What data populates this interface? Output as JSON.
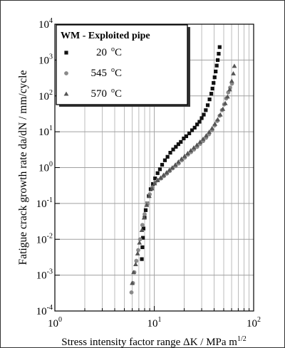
{
  "chart_data": {
    "type": "scatter",
    "xlabel": "Stress intensity factor range ΔK / MPa m",
    "xlabel_sup": "1/2",
    "ylabel": "Fatigue crack growth rate da/dN / mm/cycle",
    "xscale": "log",
    "yscale": "log",
    "xlim": [
      1,
      100
    ],
    "ylim": [
      0.0001,
      10000
    ],
    "x_ticks": [
      {
        "base": "10",
        "exp": "0",
        "value": 1
      },
      {
        "base": "10",
        "exp": "1",
        "value": 10
      },
      {
        "base": "10",
        "exp": "2",
        "value": 100
      }
    ],
    "y_ticks": [
      {
        "base": "10",
        "exp": "-4",
        "value": 0.0001
      },
      {
        "base": "10",
        "exp": "-3",
        "value": 0.001
      },
      {
        "base": "10",
        "exp": "-2",
        "value": 0.01
      },
      {
        "base": "10",
        "exp": "-1",
        "value": 0.1
      },
      {
        "base": "10",
        "exp": "0",
        "value": 1
      },
      {
        "base": "10",
        "exp": "1",
        "value": 10
      },
      {
        "base": "10",
        "exp": "2",
        "value": 100
      },
      {
        "base": "10",
        "exp": "3",
        "value": 1000
      },
      {
        "base": "10",
        "exp": "4",
        "value": 10000
      }
    ],
    "grid": true,
    "legend": {
      "title": "WM - Exploited pipe",
      "position": "top-left"
    },
    "series": [
      {
        "name": "20 °C",
        "label_num": "20",
        "marker": "square",
        "color": "#111111",
        "points": [
          [
            7.5,
            0.0028
          ],
          [
            7.6,
            0.006
          ],
          [
            7.7,
            0.011
          ],
          [
            7.8,
            0.02
          ],
          [
            8.0,
            0.04
          ],
          [
            8.2,
            0.065
          ],
          [
            8.5,
            0.1
          ],
          [
            8.8,
            0.16
          ],
          [
            9.2,
            0.25
          ],
          [
            9.7,
            0.35
          ],
          [
            10.2,
            0.5
          ],
          [
            10.8,
            0.7
          ],
          [
            11.4,
            0.9
          ],
          [
            12.0,
            1.2
          ],
          [
            12.8,
            1.6
          ],
          [
            13.6,
            2.0
          ],
          [
            14.5,
            2.6
          ],
          [
            15.5,
            3.2
          ],
          [
            16.5,
            3.8
          ],
          [
            17.5,
            4.5
          ],
          [
            18.5,
            5.2
          ],
          [
            19.8,
            6.5
          ],
          [
            21.0,
            7.5
          ],
          [
            22.5,
            9
          ],
          [
            24.0,
            11
          ],
          [
            25.5,
            13
          ],
          [
            27.0,
            16
          ],
          [
            28.5,
            19
          ],
          [
            30.0,
            24
          ],
          [
            31.5,
            30
          ],
          [
            33.0,
            40
          ],
          [
            34.5,
            55
          ],
          [
            36.0,
            80
          ],
          [
            37.5,
            115
          ],
          [
            38.5,
            160
          ],
          [
            39.5,
            230
          ],
          [
            40.5,
            330
          ],
          [
            41.5,
            480
          ],
          [
            42.5,
            700
          ],
          [
            43.5,
            1000
          ],
          [
            44.5,
            1500
          ],
          [
            45.5,
            2300
          ]
        ]
      },
      {
        "name": "545 °C",
        "label_num": "545",
        "marker": "circle",
        "color": "#8a8a8a",
        "points": [
          [
            5.9,
            0.00033
          ],
          [
            6.1,
            0.0006
          ],
          [
            6.3,
            0.0012
          ],
          [
            6.6,
            0.0025
          ],
          [
            6.9,
            0.005
          ],
          [
            7.2,
            0.01
          ],
          [
            7.6,
            0.025
          ],
          [
            8.0,
            0.05
          ],
          [
            8.5,
            0.1
          ],
          [
            9.0,
            0.18
          ],
          [
            9.6,
            0.28
          ],
          [
            10.2,
            0.38
          ],
          [
            10.9,
            0.45
          ],
          [
            11.7,
            0.5
          ],
          [
            12.5,
            0.58
          ],
          [
            13.4,
            0.68
          ],
          [
            14.3,
            0.8
          ],
          [
            15.3,
            0.95
          ],
          [
            16.4,
            1.1
          ],
          [
            17.6,
            1.3
          ],
          [
            18.9,
            1.6
          ],
          [
            20.3,
            1.9
          ],
          [
            21.8,
            2.3
          ],
          [
            23.4,
            2.7
          ],
          [
            25.1,
            3.2
          ],
          [
            27.0,
            3.8
          ],
          [
            29.0,
            4.6
          ],
          [
            31.0,
            5.5
          ],
          [
            33.2,
            6.8
          ],
          [
            35.5,
            8.5
          ],
          [
            38.0,
            11
          ],
          [
            40.5,
            15
          ],
          [
            43.0,
            20
          ],
          [
            45.5,
            28
          ],
          [
            48.0,
            40
          ],
          [
            50.5,
            58
          ],
          [
            53.0,
            85
          ],
          [
            55.5,
            125
          ],
          [
            58.0,
            170
          ],
          [
            60.5,
            220
          ]
        ]
      },
      {
        "name": "570 °C",
        "label_num": "570",
        "marker": "triangle",
        "color": "#555555",
        "points": [
          [
            6.0,
            0.0006
          ],
          [
            6.2,
            0.0012
          ],
          [
            6.5,
            0.002
          ],
          [
            6.8,
            0.004
          ],
          [
            7.1,
            0.008
          ],
          [
            7.5,
            0.018
          ],
          [
            7.9,
            0.04
          ],
          [
            8.4,
            0.09
          ],
          [
            8.9,
            0.16
          ],
          [
            9.5,
            0.26
          ],
          [
            10.1,
            0.36
          ],
          [
            10.8,
            0.44
          ],
          [
            11.6,
            0.52
          ],
          [
            12.4,
            0.62
          ],
          [
            13.3,
            0.73
          ],
          [
            14.2,
            0.86
          ],
          [
            15.2,
            1.0
          ],
          [
            16.3,
            1.2
          ],
          [
            17.5,
            1.45
          ],
          [
            18.8,
            1.75
          ],
          [
            20.2,
            2.1
          ],
          [
            21.7,
            2.5
          ],
          [
            23.3,
            3.0
          ],
          [
            25.0,
            3.6
          ],
          [
            26.9,
            4.3
          ],
          [
            28.9,
            5.2
          ],
          [
            31.0,
            6.3
          ],
          [
            33.3,
            7.8
          ],
          [
            35.7,
            9.8
          ],
          [
            38.2,
            12.5
          ],
          [
            40.8,
            16.5
          ],
          [
            43.5,
            22
          ],
          [
            46.2,
            30
          ],
          [
            49.0,
            43
          ],
          [
            51.8,
            62
          ],
          [
            54.6,
            95
          ],
          [
            57.4,
            150
          ],
          [
            60.2,
            260
          ],
          [
            62.5,
            420
          ],
          [
            64.0,
            680
          ]
        ]
      }
    ]
  },
  "colors": {
    "frame": "#333333",
    "axis": "#000000",
    "grid": "#a0a0a0",
    "background": "#ffffff"
  }
}
